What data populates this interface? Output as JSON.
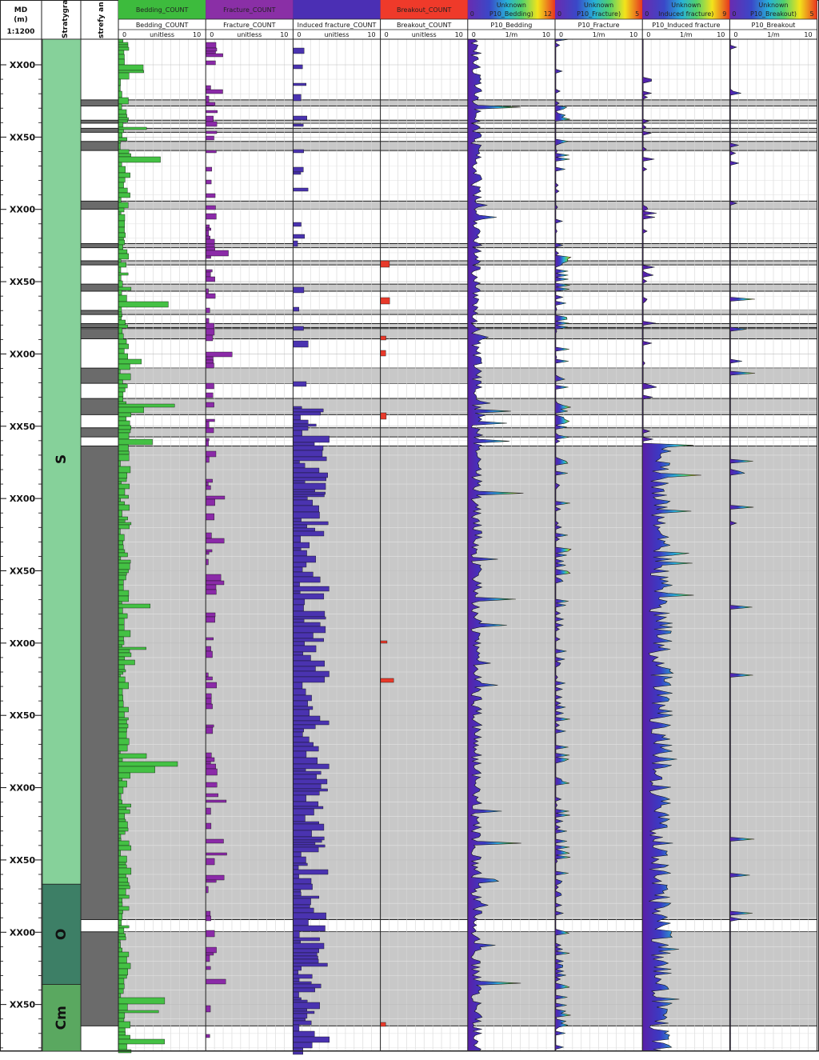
{
  "header": {
    "md_label": "MD",
    "md_unit": "(m)",
    "scale": "1:1200",
    "strat_col_title": "Stratygraf",
    "zones_col_title": "strefy an"
  },
  "depth_labels": [
    "XX00",
    "XX50",
    "XX00",
    "XX50",
    "XX00",
    "XX50",
    "XX00",
    "XX50",
    "XX00",
    "XX50",
    "XX00",
    "XX50",
    "XX00",
    "XX50"
  ],
  "stratigraphy": [
    {
      "label": "S",
      "top": 0,
      "bottom": 0.835,
      "color": "#86d19a"
    },
    {
      "label": "O",
      "top": 0.835,
      "bottom": 0.934,
      "color": "#3d7f66"
    },
    {
      "label": "Cm",
      "top": 0.934,
      "bottom": 1.0,
      "color": "#5aa860"
    }
  ],
  "tracks": [
    {
      "key": "bedding",
      "title": "Bedding_COUNT",
      "curve": "Bedding_COUNT",
      "unit": "unitless",
      "min": "0",
      "max": "10",
      "title_bg": "#3dbb3d",
      "fill": "#44c144",
      "kind": "bar",
      "seed": 11,
      "scale": 1.0
    },
    {
      "key": "fracture",
      "title": "Fracture_COUNT",
      "curve": "Fracture_COUNT",
      "unit": "unitless",
      "min": "0",
      "max": "10",
      "title_bg": "#8a2fa6",
      "fill": "#8b2aa8",
      "kind": "bar",
      "seed": 23,
      "scale": 0.45
    },
    {
      "key": "induced",
      "title": "",
      "curve": "Induced fracture_COUNT",
      "unit": "unitless",
      "min": "0",
      "max": "10",
      "title_bg": "#4b2fb4",
      "fill": "#4a33b0",
      "kind": "bar",
      "seed": 37,
      "scale": 0.6
    },
    {
      "key": "breakout",
      "title": "Breakout_COUNT",
      "curve": "Breakout_COUNT",
      "unit": "unitless",
      "min": "0",
      "max": "10",
      "title_bg": "#ef3a2a",
      "fill": "#e8392a",
      "kind": "bar",
      "seed": 51,
      "scale": 0.35
    },
    {
      "key": "p10bed",
      "title": "Unknown",
      "title2": "P10_Bedding)",
      "title2max": "12",
      "curve": "P10_Bedding",
      "unit": "1/m",
      "min": "0",
      "max": "10",
      "title_bg": "grad",
      "kind": "area",
      "seed": 61,
      "scale": 0.55
    },
    {
      "key": "p10frac",
      "title": "Unknown",
      "title2": "P10_Fracture)",
      "title2max": "5",
      "curve": "P10_Fracture",
      "unit": "1/m",
      "min": "0",
      "max": "10",
      "title_bg": "grad",
      "kind": "area",
      "seed": 73,
      "scale": 0.3
    },
    {
      "key": "p10ind",
      "title": "Unknown",
      "title2": "Induced fracture)",
      "title2max": "9",
      "curve": "P10_Induced fracture",
      "unit": "1/m",
      "min": "0",
      "max": "10",
      "title_bg": "grad",
      "kind": "area",
      "seed": 89,
      "scale": 0.5
    },
    {
      "key": "p10brk",
      "title": "Unknown",
      "title2": "P10_Breakout)",
      "title2max": "5",
      "curve": "P10_Breakout",
      "unit": "1/m",
      "min": "0",
      "max": "10",
      "title_bg": "grad",
      "kind": "area",
      "seed": 97,
      "scale": 0.25
    }
  ],
  "chart_data": {
    "type": "area",
    "depth_axis_ticks": [
      "XX00",
      "XX50",
      "XX00",
      "XX50",
      "XX00",
      "XX50",
      "XX00",
      "XX50",
      "XX00",
      "XX50",
      "XX00",
      "XX50",
      "XX00",
      "XX50"
    ],
    "series": [
      {
        "name": "Bedding_COUNT",
        "unit": "unitless",
        "range": [
          0,
          10
        ]
      },
      {
        "name": "Fracture_COUNT",
        "unit": "unitless",
        "range": [
          0,
          10
        ]
      },
      {
        "name": "Induced fracture_COUNT",
        "unit": "unitless",
        "range": [
          0,
          10
        ]
      },
      {
        "name": "Breakout_COUNT",
        "unit": "unitless",
        "range": [
          0,
          10
        ]
      },
      {
        "name": "P10_Bedding",
        "unit": "1/m",
        "range": [
          0,
          10
        ]
      },
      {
        "name": "P10_Fracture",
        "unit": "1/m",
        "range": [
          0,
          10
        ]
      },
      {
        "name": "P10_Induced fracture",
        "unit": "1/m",
        "range": [
          0,
          10
        ]
      },
      {
        "name": "P10_Breakout",
        "unit": "1/m",
        "range": [
          0,
          10
        ]
      }
    ],
    "zones": [
      {
        "top": 0.06,
        "bottom": 0.066,
        "shade": "dark"
      },
      {
        "top": 0.08,
        "bottom": 0.083,
        "shade": "dark"
      },
      {
        "top": 0.088,
        "bottom": 0.092,
        "shade": "dark"
      },
      {
        "top": 0.101,
        "bottom": 0.11,
        "shade": "dark"
      },
      {
        "top": 0.16,
        "bottom": 0.168,
        "shade": "dark"
      },
      {
        "top": 0.202,
        "bottom": 0.206,
        "shade": "dark"
      },
      {
        "top": 0.219,
        "bottom": 0.223,
        "shade": "dark"
      },
      {
        "top": 0.242,
        "bottom": 0.249,
        "shade": "dark"
      },
      {
        "top": 0.268,
        "bottom": 0.272,
        "shade": "dark"
      },
      {
        "top": 0.281,
        "bottom": 0.285,
        "shade": "dark"
      },
      {
        "top": 0.286,
        "bottom": 0.296,
        "shade": "dark"
      },
      {
        "top": 0.325,
        "bottom": 0.34,
        "shade": "dark"
      },
      {
        "top": 0.355,
        "bottom": 0.371,
        "shade": "dark"
      },
      {
        "top": 0.384,
        "bottom": 0.393,
        "shade": "dark"
      },
      {
        "top": 0.402,
        "bottom": 0.87,
        "shade": "dark"
      },
      {
        "top": 0.882,
        "bottom": 0.975,
        "shade": "dark"
      }
    ]
  }
}
